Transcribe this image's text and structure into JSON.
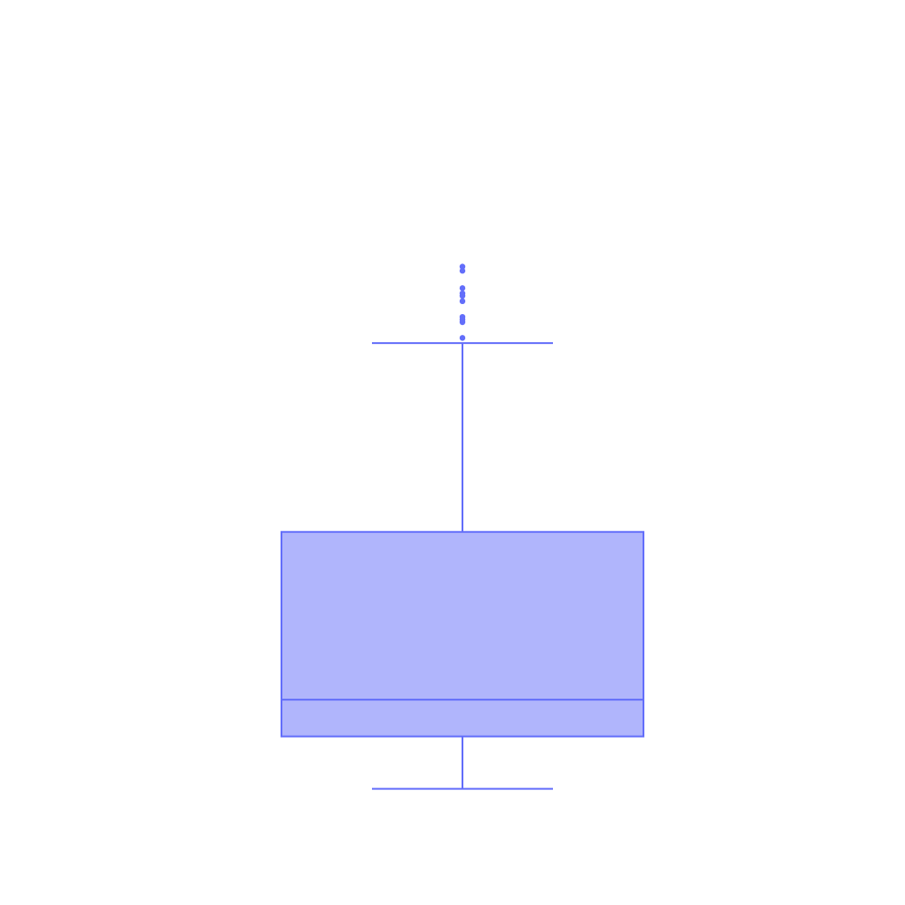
{
  "chart_data": {
    "type": "box",
    "title": "",
    "xlabel": "",
    "ylabel": "",
    "grid": false,
    "legend": "none",
    "ylim": [
      0,
      100
    ],
    "series": [
      {
        "min": 10,
        "q1": 20,
        "median": 27,
        "q3": 59,
        "max": 95,
        "outliers": [
          100,
          99,
          96,
          99.5,
          103,
          104,
          104.5,
          105.5,
          108.8,
          109.6
        ]
      }
    ],
    "colors": {
      "stroke": "#636efa",
      "fill": "#b0b5fc",
      "outlier": "#636efa"
    }
  }
}
